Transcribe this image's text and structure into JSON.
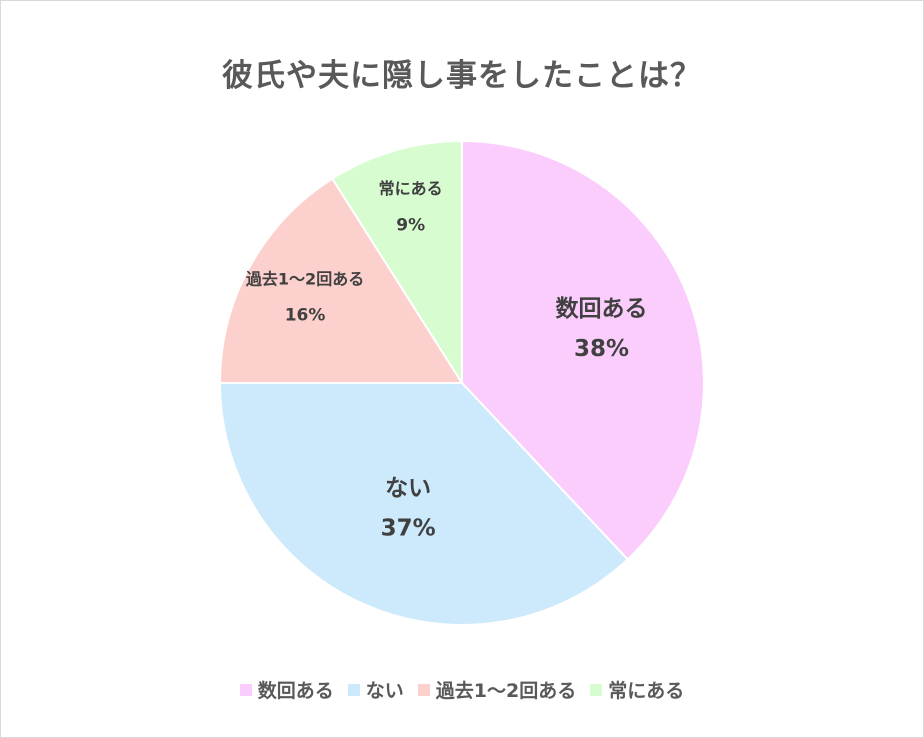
{
  "chart_data": {
    "type": "pie",
    "title": "彼氏や夫に隠し事をしたことは？",
    "slices": [
      {
        "label": "数回ある",
        "value": 38,
        "value_label": "38%",
        "color": "#fbcdfc"
      },
      {
        "label": "ない",
        "value": 37,
        "value_label": "37%",
        "color": "#cde9fc"
      },
      {
        "label": "過去1～2回ある",
        "value": 16,
        "value_label": "16%",
        "color": "#fcd0cd"
      },
      {
        "label": "常にある",
        "value": 9,
        "value_label": "9%",
        "color": "#d6fcd0"
      }
    ],
    "start": "12 o'clock",
    "direction": "clockwise",
    "legend_position": "bottom"
  }
}
